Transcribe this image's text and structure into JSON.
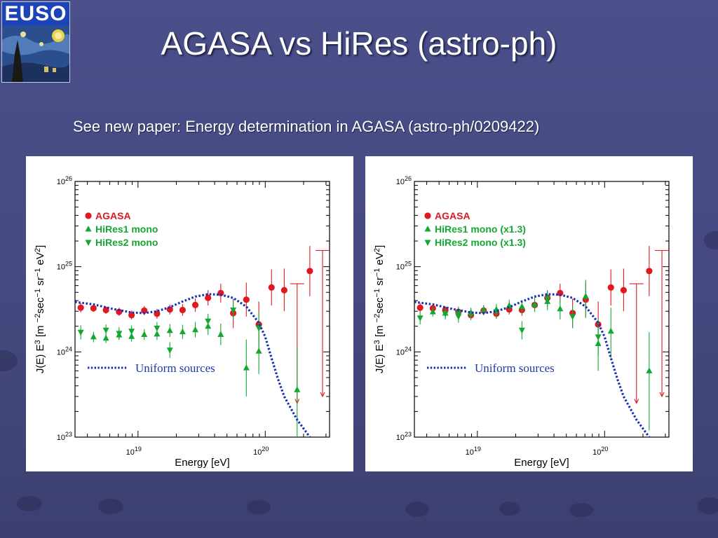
{
  "logo": {
    "text": "EUSO"
  },
  "slide": {
    "title": "AGASA vs HiRes (astro-ph)",
    "subtitle": "See new paper: Energy determination in AGASA (astro-ph/0209422)"
  },
  "colors": {
    "agasa": "#e0191e",
    "hires": "#14a832",
    "model": "#1830b8"
  },
  "chart_data": [
    {
      "type": "scatter",
      "xlabel": "Energy [eV]",
      "ylabel": "J(E) E^3 [m^-2 sec^-1 sr^-1 eV^2]",
      "xscale": "log",
      "yscale": "log",
      "xlim": [
        3.2e+18,
        3.2e+20
      ],
      "ylim": [
        1e+23,
        1e+26
      ],
      "x_ticks": [
        "10^19",
        "10^20"
      ],
      "y_ticks": [
        "10^23",
        "10^24",
        "10^25",
        "10^26"
      ],
      "legend_position": "top-left",
      "series": [
        {
          "name": "AGASA",
          "marker": "circle",
          "color": "#e0191e",
          "points": [
            {
              "x": 3.55e+18,
              "y": 3.3e+24,
              "lo": 2.9e+24,
              "hi": 3.75e+24
            },
            {
              "x": 4.47e+18,
              "y": 3.25e+24,
              "lo": 2.95e+24,
              "hi": 3.6e+24
            },
            {
              "x": 5.6e+18,
              "y": 3.1e+24,
              "lo": 2.8e+24,
              "hi": 3.4e+24
            },
            {
              "x": 7.1e+18,
              "y": 2.95e+24,
              "lo": 2.65e+24,
              "hi": 3.3e+24
            },
            {
              "x": 8.9e+18,
              "y": 2.7e+24,
              "lo": 2.4e+24,
              "hi": 3.05e+24
            },
            {
              "x": 1.12e+19,
              "y": 3.05e+24,
              "lo": 2.7e+24,
              "hi": 3.45e+24
            },
            {
              "x": 1.41e+19,
              "y": 2.8e+24,
              "lo": 2.45e+24,
              "hi": 3.2e+24
            },
            {
              "x": 1.78e+19,
              "y": 3.15e+24,
              "lo": 2.75e+24,
              "hi": 3.6e+24
            },
            {
              "x": 2.24e+19,
              "y": 3.1e+24,
              "lo": 2.65e+24,
              "hi": 3.65e+24
            },
            {
              "x": 2.82e+19,
              "y": 3.55e+24,
              "lo": 2.95e+24,
              "hi": 4.25e+24
            },
            {
              "x": 3.55e+19,
              "y": 4.3e+24,
              "lo": 3.5e+24,
              "hi": 5.3e+24
            },
            {
              "x": 4.47e+19,
              "y": 4.9e+24,
              "lo": 3.8e+24,
              "hi": 6.3e+24
            },
            {
              "x": 5.6e+19,
              "y": 2.85e+24,
              "lo": 1.9e+24,
              "hi": 4.2e+24
            },
            {
              "x": 7.1e+19,
              "y": 4.1e+24,
              "lo": 2.6e+24,
              "hi": 6.5e+24
            },
            {
              "x": 8.9e+19,
              "y": 2.1e+24,
              "lo": 1.1e+24,
              "hi": 3.9e+24
            },
            {
              "x": 1.12e+20,
              "y": 5.7e+24,
              "lo": 3.5e+24,
              "hi": 9.3e+24
            },
            {
              "x": 1.41e+20,
              "y": 5.3e+24,
              "lo": 3e+24,
              "hi": 9.5e+24
            },
            {
              "x": 2.24e+20,
              "y": 8.9e+24,
              "lo": 4.5e+24,
              "hi": 1.75e+25
            }
          ],
          "upper_limits": [
            {
              "x": 1.78e+20,
              "y": 6.3e+24,
              "down_to": 2.5e+23
            },
            {
              "x": 2.82e+20,
              "y": 1.55e+25,
              "down_to": 3e+23
            }
          ]
        },
        {
          "name": "HiRes1 mono",
          "marker": "triangle-up",
          "color": "#14a832",
          "points": [
            {
              "x": 4.47e+18,
              "y": 1.5e+24,
              "lo": 1.3e+24,
              "hi": 1.72e+24
            },
            {
              "x": 5.6e+18,
              "y": 1.45e+24,
              "lo": 1.27e+24,
              "hi": 1.65e+24
            },
            {
              "x": 7.1e+18,
              "y": 1.58e+24,
              "lo": 1.38e+24,
              "hi": 1.8e+24
            },
            {
              "x": 8.9e+18,
              "y": 1.52e+24,
              "lo": 1.32e+24,
              "hi": 1.75e+24
            },
            {
              "x": 1.12e+19,
              "y": 1.6e+24,
              "lo": 1.38e+24,
              "hi": 1.85e+24
            },
            {
              "x": 1.41e+19,
              "y": 1.62e+24,
              "lo": 1.38e+24,
              "hi": 1.9e+24
            },
            {
              "x": 1.78e+19,
              "y": 1.78e+24,
              "lo": 1.5e+24,
              "hi": 2.12e+24
            },
            {
              "x": 2.24e+19,
              "y": 1.72e+24,
              "lo": 1.42e+24,
              "hi": 2.08e+24
            },
            {
              "x": 2.82e+19,
              "y": 1.82e+24,
              "lo": 1.48e+24,
              "hi": 2.25e+24
            },
            {
              "x": 3.55e+19,
              "y": 2e+24,
              "lo": 1.58e+24,
              "hi": 2.55e+24
            },
            {
              "x": 4.47e+19,
              "y": 1.6e+24,
              "lo": 1.2e+24,
              "hi": 2.15e+24
            },
            {
              "x": 7.1e+19,
              "y": 6.5e+23,
              "lo": 3e+23,
              "hi": 1.4e+24
            },
            {
              "x": 8.9e+19,
              "y": 1.02e+24,
              "lo": 5.5e+23,
              "hi": 1.8e+24
            },
            {
              "x": 1.78e+20,
              "y": 3.6e+23,
              "lo": 1e+23,
              "hi": 1.15e+24
            }
          ]
        },
        {
          "name": "HiRes2 mono",
          "marker": "triangle-down",
          "color": "#14a832",
          "points": [
            {
              "x": 3.55e+18,
              "y": 1.7e+24,
              "lo": 1.4e+24,
              "hi": 2.05e+24
            },
            {
              "x": 5.6e+18,
              "y": 1.8e+24,
              "lo": 1.55e+24,
              "hi": 2.1e+24
            },
            {
              "x": 7.1e+18,
              "y": 1.65e+24,
              "lo": 1.4e+24,
              "hi": 1.95e+24
            },
            {
              "x": 8.9e+18,
              "y": 1.75e+24,
              "lo": 1.5e+24,
              "hi": 2.05e+24
            },
            {
              "x": 1.41e+19,
              "y": 1.9e+24,
              "lo": 1.6e+24,
              "hi": 2.25e+24
            },
            {
              "x": 1.78e+19,
              "y": 1.05e+24,
              "lo": 8.5e+23,
              "hi": 1.3e+24
            },
            {
              "x": 3.55e+19,
              "y": 2.3e+24,
              "lo": 1.9e+24,
              "hi": 2.8e+24
            },
            {
              "x": 5.6e+19,
              "y": 3.1e+24,
              "lo": 2.4e+24,
              "hi": 4e+24
            },
            {
              "x": 8.9e+19,
              "y": 1.9e+24,
              "lo": 1.2e+24,
              "hi": 3e+24
            }
          ]
        },
        {
          "name": "Uniform sources",
          "type": "line",
          "style": "dotted",
          "color": "#1830b8",
          "points": [
            {
              "x": 3.2e+18,
              "y": 3.85e+24
            },
            {
              "x": 4.5e+18,
              "y": 3.6e+24
            },
            {
              "x": 6.3e+18,
              "y": 3.2e+24
            },
            {
              "x": 8.9e+18,
              "y": 2.9e+24
            },
            {
              "x": 1.12e+19,
              "y": 2.85e+24
            },
            {
              "x": 1.41e+19,
              "y": 3e+24
            },
            {
              "x": 1.78e+19,
              "y": 3.35e+24
            },
            {
              "x": 2.24e+19,
              "y": 3.9e+24
            },
            {
              "x": 2.82e+19,
              "y": 4.45e+24
            },
            {
              "x": 3.55e+19,
              "y": 4.75e+24
            },
            {
              "x": 4.47e+19,
              "y": 4.7e+24
            },
            {
              "x": 5.6e+19,
              "y": 4.3e+24
            },
            {
              "x": 7.1e+19,
              "y": 3.4e+24
            },
            {
              "x": 8.9e+19,
              "y": 2.2e+24
            },
            {
              "x": 1e+20,
              "y": 1.5e+24
            },
            {
              "x": 1.12e+20,
              "y": 8.5e+23
            },
            {
              "x": 1.26e+20,
              "y": 4.8e+23
            },
            {
              "x": 1.41e+20,
              "y": 3e+23
            },
            {
              "x": 1.78e+20,
              "y": 1.6e+23
            },
            {
              "x": 2.24e+20,
              "y": 1e+23
            }
          ]
        }
      ]
    },
    {
      "type": "scatter",
      "xlabel": "Energy [eV]",
      "ylabel": "J(E) E^3 [m^-2 sec^-1 sr^-1 eV^2]",
      "xscale": "log",
      "yscale": "log",
      "xlim": [
        3.2e+18,
        3.2e+20
      ],
      "ylim": [
        1e+23,
        1e+26
      ],
      "x_ticks": [
        "10^19",
        "10^20"
      ],
      "y_ticks": [
        "10^23",
        "10^24",
        "10^25",
        "10^26"
      ],
      "legend_position": "top-left",
      "series": [
        {
          "name": "AGASA",
          "marker": "circle",
          "color": "#e0191e",
          "points": [
            {
              "x": 3.55e+18,
              "y": 3.3e+24,
              "lo": 2.9e+24,
              "hi": 3.75e+24
            },
            {
              "x": 4.47e+18,
              "y": 3.25e+24,
              "lo": 2.95e+24,
              "hi": 3.6e+24
            },
            {
              "x": 5.6e+18,
              "y": 3.1e+24,
              "lo": 2.8e+24,
              "hi": 3.4e+24
            },
            {
              "x": 7.1e+18,
              "y": 2.95e+24,
              "lo": 2.65e+24,
              "hi": 3.3e+24
            },
            {
              "x": 8.9e+18,
              "y": 2.7e+24,
              "lo": 2.4e+24,
              "hi": 3.05e+24
            },
            {
              "x": 1.12e+19,
              "y": 3.05e+24,
              "lo": 2.7e+24,
              "hi": 3.45e+24
            },
            {
              "x": 1.41e+19,
              "y": 2.8e+24,
              "lo": 2.45e+24,
              "hi": 3.2e+24
            },
            {
              "x": 1.78e+19,
              "y": 3.15e+24,
              "lo": 2.75e+24,
              "hi": 3.6e+24
            },
            {
              "x": 2.24e+19,
              "y": 3.1e+24,
              "lo": 2.65e+24,
              "hi": 3.65e+24
            },
            {
              "x": 2.82e+19,
              "y": 3.55e+24,
              "lo": 2.95e+24,
              "hi": 4.25e+24
            },
            {
              "x": 3.55e+19,
              "y": 4.3e+24,
              "lo": 3.5e+24,
              "hi": 5.3e+24
            },
            {
              "x": 4.47e+19,
              "y": 4.9e+24,
              "lo": 3.8e+24,
              "hi": 6.3e+24
            },
            {
              "x": 5.6e+19,
              "y": 2.85e+24,
              "lo": 1.9e+24,
              "hi": 4.2e+24
            },
            {
              "x": 7.1e+19,
              "y": 4.1e+24,
              "lo": 2.6e+24,
              "hi": 6.5e+24
            },
            {
              "x": 8.9e+19,
              "y": 2.1e+24,
              "lo": 1.1e+24,
              "hi": 3.9e+24
            },
            {
              "x": 1.12e+20,
              "y": 5.7e+24,
              "lo": 3.5e+24,
              "hi": 9.3e+24
            },
            {
              "x": 1.41e+20,
              "y": 5.3e+24,
              "lo": 3e+24,
              "hi": 9.5e+24
            },
            {
              "x": 2.24e+20,
              "y": 8.9e+24,
              "lo": 4.5e+24,
              "hi": 1.75e+25
            }
          ],
          "upper_limits": [
            {
              "x": 1.78e+20,
              "y": 6.3e+24,
              "down_to": 2.5e+23
            },
            {
              "x": 2.82e+20,
              "y": 1.55e+25,
              "down_to": 3e+23
            }
          ]
        },
        {
          "name": "HiRes1 mono (x1.3)",
          "marker": "triangle-up",
          "color": "#14a832",
          "points": [
            {
              "x": 4.47e+18,
              "y": 2.95e+24,
              "lo": 2.6e+24,
              "hi": 3.35e+24
            },
            {
              "x": 5.6e+18,
              "y": 2.85e+24,
              "lo": 2.5e+24,
              "hi": 3.2e+24
            },
            {
              "x": 7.1e+18,
              "y": 3e+24,
              "lo": 2.65e+24,
              "hi": 3.4e+24
            },
            {
              "x": 8.9e+18,
              "y": 2.9e+24,
              "lo": 2.55e+24,
              "hi": 3.3e+24
            },
            {
              "x": 1.12e+19,
              "y": 3.1e+24,
              "lo": 2.7e+24,
              "hi": 3.55e+24
            },
            {
              "x": 1.41e+19,
              "y": 3.15e+24,
              "lo": 2.7e+24,
              "hi": 3.65e+24
            },
            {
              "x": 1.78e+19,
              "y": 3.5e+24,
              "lo": 3e+24,
              "hi": 4.1e+24
            },
            {
              "x": 2.24e+19,
              "y": 3.4e+24,
              "lo": 2.85e+24,
              "hi": 4.05e+24
            },
            {
              "x": 2.82e+19,
              "y": 3.6e+24,
              "lo": 2.95e+24,
              "hi": 4.4e+24
            },
            {
              "x": 3.55e+19,
              "y": 3.9e+24,
              "lo": 3.1e+24,
              "hi": 4.9e+24
            },
            {
              "x": 4.47e+19,
              "y": 3.2e+24,
              "lo": 2.4e+24,
              "hi": 4.2e+24
            },
            {
              "x": 7.1e+19,
              "y": 4.5e+24,
              "lo": 2.5e+24,
              "hi": 7e+24
            },
            {
              "x": 8.9e+19,
              "y": 1.25e+24,
              "lo": 6e+23,
              "hi": 2.3e+24
            },
            {
              "x": 1.12e+20,
              "y": 1.75e+24,
              "lo": 8.5e+23,
              "hi": 3.3e+24
            },
            {
              "x": 2.24e+20,
              "y": 6e+23,
              "lo": 1.2e+23,
              "hi": 1.7e+24
            }
          ]
        },
        {
          "name": "HiRes2 mono (x1.3)",
          "marker": "triangle-down",
          "color": "#14a832",
          "points": [
            {
              "x": 3.55e+18,
              "y": 2.5e+24,
              "lo": 2.1e+24,
              "hi": 2.95e+24
            },
            {
              "x": 5.6e+18,
              "y": 2.8e+24,
              "lo": 2.4e+24,
              "hi": 3.25e+24
            },
            {
              "x": 7.1e+18,
              "y": 2.6e+24,
              "lo": 2.2e+24,
              "hi": 3.05e+24
            },
            {
              "x": 8.9e+18,
              "y": 2.75e+24,
              "lo": 2.35e+24,
              "hi": 3.2e+24
            },
            {
              "x": 1.41e+19,
              "y": 2.95e+24,
              "lo": 2.5e+24,
              "hi": 3.5e+24
            },
            {
              "x": 2.24e+19,
              "y": 1.8e+24,
              "lo": 1.4e+24,
              "hi": 2.3e+24
            },
            {
              "x": 3.55e+19,
              "y": 4.2e+24,
              "lo": 3.4e+24,
              "hi": 5.2e+24
            },
            {
              "x": 5.6e+19,
              "y": 2.6e+24,
              "lo": 1.9e+24,
              "hi": 3.5e+24
            },
            {
              "x": 8.9e+19,
              "y": 1.5e+24,
              "lo": 9e+23,
              "hi": 2.5e+24
            }
          ]
        },
        {
          "name": "Uniform sources",
          "type": "line",
          "style": "dotted",
          "color": "#1830b8",
          "points": [
            {
              "x": 3.2e+18,
              "y": 3.85e+24
            },
            {
              "x": 4.5e+18,
              "y": 3.6e+24
            },
            {
              "x": 6.3e+18,
              "y": 3.2e+24
            },
            {
              "x": 8.9e+18,
              "y": 2.9e+24
            },
            {
              "x": 1.12e+19,
              "y": 2.85e+24
            },
            {
              "x": 1.41e+19,
              "y": 3e+24
            },
            {
              "x": 1.78e+19,
              "y": 3.35e+24
            },
            {
              "x": 2.24e+19,
              "y": 3.9e+24
            },
            {
              "x": 2.82e+19,
              "y": 4.45e+24
            },
            {
              "x": 3.55e+19,
              "y": 4.75e+24
            },
            {
              "x": 4.47e+19,
              "y": 4.7e+24
            },
            {
              "x": 5.6e+19,
              "y": 4.3e+24
            },
            {
              "x": 7.1e+19,
              "y": 3.4e+24
            },
            {
              "x": 8.9e+19,
              "y": 2.2e+24
            },
            {
              "x": 1e+20,
              "y": 1.5e+24
            },
            {
              "x": 1.12e+20,
              "y": 8.5e+23
            },
            {
              "x": 1.26e+20,
              "y": 4.8e+23
            },
            {
              "x": 1.41e+20,
              "y": 3e+23
            },
            {
              "x": 1.78e+20,
              "y": 1.6e+23
            },
            {
              "x": 2.24e+20,
              "y": 1e+23
            }
          ]
        }
      ]
    }
  ]
}
